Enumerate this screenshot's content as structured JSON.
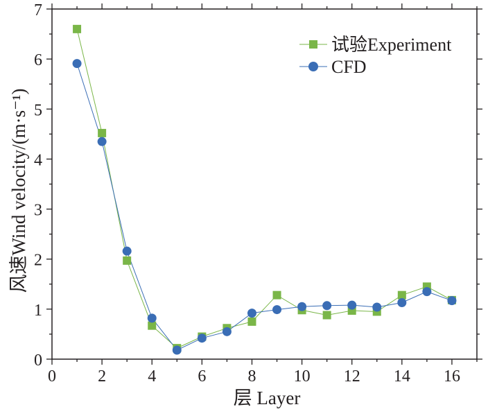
{
  "chart_data": {
    "type": "line",
    "xlabel": "层 Layer",
    "ylabel": "风速Wind velocity/(m·s⁻¹)",
    "xlim": [
      0,
      17
    ],
    "ylim": [
      0,
      7
    ],
    "x_ticks": [
      0,
      2,
      4,
      6,
      8,
      10,
      12,
      14,
      16
    ],
    "y_ticks": [
      0,
      1,
      2,
      3,
      4,
      5,
      6,
      7
    ],
    "x_tick_labels": [
      "0",
      "2",
      "4",
      "6",
      "8",
      "10",
      "12",
      "14",
      "16"
    ],
    "y_tick_labels": [
      "0",
      "1",
      "2",
      "3",
      "4",
      "5",
      "6",
      "7"
    ],
    "legend_position": "top-right",
    "x": [
      1,
      2,
      3,
      4,
      5,
      6,
      7,
      8,
      9,
      10,
      11,
      12,
      13,
      14,
      15,
      16
    ],
    "series": [
      {
        "name": "试验Experiment",
        "marker": "square",
        "color": "#7ab648",
        "values": [
          6.6,
          4.52,
          1.97,
          0.67,
          0.22,
          0.45,
          0.62,
          0.75,
          1.28,
          0.98,
          0.88,
          0.97,
          0.95,
          1.28,
          1.45,
          1.18
        ]
      },
      {
        "name": "CFD",
        "marker": "circle",
        "color": "#3a6db5",
        "values": [
          5.91,
          4.35,
          2.16,
          0.82,
          0.18,
          0.42,
          0.55,
          0.92,
          0.99,
          1.05,
          1.07,
          1.08,
          1.04,
          1.13,
          1.35,
          1.17
        ]
      }
    ]
  }
}
